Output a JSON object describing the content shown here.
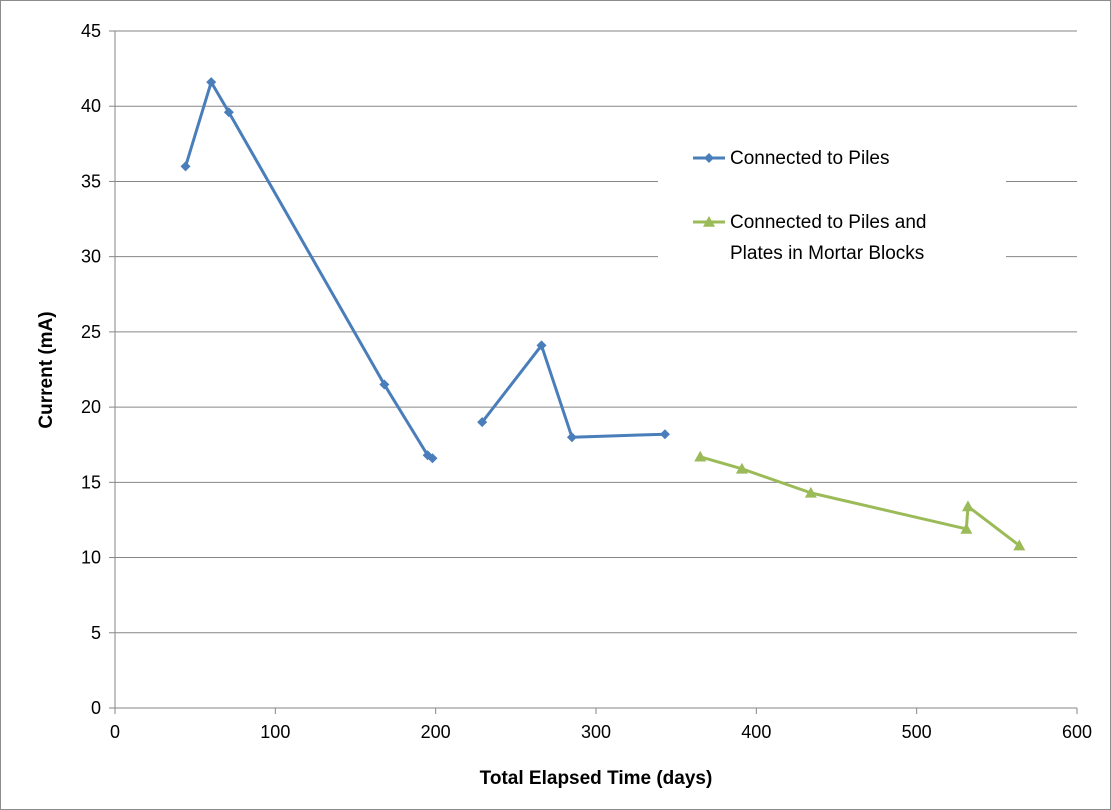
{
  "chart_data": {
    "type": "line",
    "xlabel": "Total Elapsed Time (days)",
    "ylabel": "Current (mA)",
    "xlim": [
      0,
      600
    ],
    "ylim": [
      0,
      45
    ],
    "x_ticks": [
      0,
      100,
      200,
      300,
      400,
      500,
      600
    ],
    "y_ticks": [
      0,
      5,
      10,
      15,
      20,
      25,
      30,
      35,
      40,
      45
    ],
    "grid": "horizontal",
    "legend_position": "right",
    "series": [
      {
        "name": "Connected to Piles",
        "color": "#4a7ebb",
        "marker": "diamond",
        "segments": [
          [
            [
              44,
              36.0
            ],
            [
              60,
              41.6
            ],
            [
              71,
              39.6
            ],
            [
              168,
              21.5
            ],
            [
              195,
              16.8
            ],
            [
              198,
              16.6
            ]
          ],
          [
            [
              229,
              19.0
            ],
            [
              266,
              24.1
            ],
            [
              285,
              18.0
            ],
            [
              343,
              18.2
            ]
          ]
        ]
      },
      {
        "name": "Connected to Piles and Plates in Mortar Blocks",
        "legend_lines": [
          "Connected to Piles and",
          "Plates in Mortar Blocks"
        ],
        "color": "#9bbb59",
        "marker": "triangle",
        "segments": [
          [
            [
              365,
              16.7
            ],
            [
              391,
              15.9
            ],
            [
              434,
              14.3
            ],
            [
              531,
              11.9
            ],
            [
              532,
              13.4
            ],
            [
              564,
              10.8
            ]
          ]
        ]
      }
    ]
  }
}
